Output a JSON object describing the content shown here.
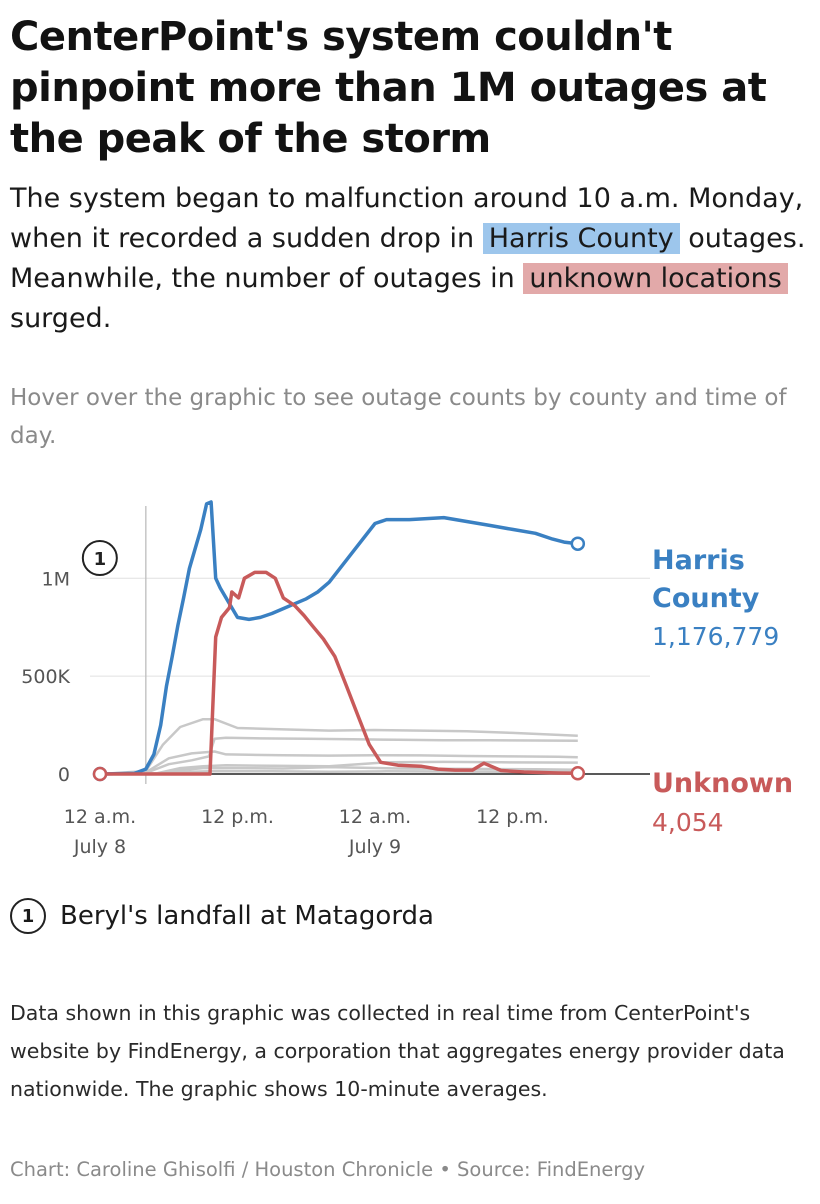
{
  "headline": "CenterPoint's system couldn't pinpoint more than 1M outages at the peak of the storm",
  "dek": {
    "part1": "The system began to malfunction around 10 a.m. Monday, when it recorded a sudden drop in",
    "harris_label": "Harris County",
    "part2": "outages. Meanwhile, the number of outages in",
    "unknown_label": "unknown locations",
    "part3": "surged."
  },
  "hover_note": "Hover over the graphic to see outage counts by county and time of day.",
  "annotation": {
    "badge": "1",
    "text": "Beryl's landfall at Matagorda"
  },
  "footer_note": "Data shown in this graphic was collected in real time from CenterPoint's website by FindEnergy, a corporation that aggregates energy provider data nationwide. The graphic shows 10-minute averages.",
  "credit": "Chart: Caroline Ghisolfi / Houston Chronicle • Source: FindEnergy",
  "colors": {
    "harris": "#3a80c2",
    "unknown": "#c85a5a",
    "other": "#c8c8c8",
    "grid": "#e0e0e0",
    "zero_line": "#222222"
  },
  "chart_data": {
    "type": "line",
    "x_unit": "hours since 12 a.m. July 8",
    "xlim": [
      0,
      48
    ],
    "ylim": [
      0,
      1400000
    ],
    "yticks": [
      {
        "value": 0,
        "label": "0"
      },
      {
        "value": 500000,
        "label": "500K"
      },
      {
        "value": 1000000,
        "label": "1M"
      }
    ],
    "xticks": [
      {
        "value": 0,
        "line1": "12 a.m.",
        "line2": "July 8"
      },
      {
        "value": 12,
        "line1": "12 p.m.",
        "line2": ""
      },
      {
        "value": 24,
        "line1": "12 a.m.",
        "line2": "July 9"
      },
      {
        "value": 36,
        "line1": "12 p.m.",
        "line2": ""
      }
    ],
    "event_marker": {
      "x": 4,
      "label": "1"
    },
    "series": [
      {
        "name": "Harris County",
        "role": "harris",
        "end_label_line1": "Harris",
        "end_label_line2": "County",
        "end_value": "1,176,779",
        "points": [
          [
            0,
            0
          ],
          [
            3,
            3000
          ],
          [
            4,
            25000
          ],
          [
            4.7,
            100000
          ],
          [
            5.3,
            250000
          ],
          [
            5.8,
            450000
          ],
          [
            6.3,
            600000
          ],
          [
            6.8,
            760000
          ],
          [
            7.3,
            900000
          ],
          [
            7.8,
            1050000
          ],
          [
            8.3,
            1150000
          ],
          [
            8.8,
            1250000
          ],
          [
            9.3,
            1380000
          ],
          [
            9.7,
            1390000
          ],
          [
            10.1,
            1000000
          ],
          [
            10.5,
            950000
          ],
          [
            11.2,
            880000
          ],
          [
            12,
            800000
          ],
          [
            13,
            790000
          ],
          [
            14,
            800000
          ],
          [
            15,
            820000
          ],
          [
            16,
            845000
          ],
          [
            17,
            870000
          ],
          [
            18,
            895000
          ],
          [
            19,
            930000
          ],
          [
            20,
            980000
          ],
          [
            22,
            1130000
          ],
          [
            24,
            1280000
          ],
          [
            25,
            1300000
          ],
          [
            27,
            1300000
          ],
          [
            30,
            1310000
          ],
          [
            32,
            1290000
          ],
          [
            34,
            1270000
          ],
          [
            36,
            1250000
          ],
          [
            38,
            1230000
          ],
          [
            39.5,
            1200000
          ],
          [
            40.5,
            1185000
          ],
          [
            41.7,
            1176779
          ]
        ]
      },
      {
        "name": "Unknown",
        "role": "unknown",
        "end_label_line1": "Unknown",
        "end_label_line2": "",
        "end_value": "4,054",
        "points": [
          [
            0,
            0
          ],
          [
            9.6,
            0
          ],
          [
            10.1,
            700000
          ],
          [
            10.6,
            800000
          ],
          [
            11.3,
            850000
          ],
          [
            11.5,
            930000
          ],
          [
            12.1,
            900000
          ],
          [
            12.6,
            1000000
          ],
          [
            13.5,
            1030000
          ],
          [
            14.5,
            1030000
          ],
          [
            15.3,
            1000000
          ],
          [
            16,
            900000
          ],
          [
            17,
            860000
          ],
          [
            17.8,
            810000
          ],
          [
            18.5,
            760000
          ],
          [
            19.5,
            690000
          ],
          [
            20.5,
            600000
          ],
          [
            21.5,
            450000
          ],
          [
            22.5,
            300000
          ],
          [
            23.5,
            150000
          ],
          [
            24.5,
            60000
          ],
          [
            26,
            45000
          ],
          [
            28,
            40000
          ],
          [
            29.5,
            25000
          ],
          [
            31,
            20000
          ],
          [
            32.5,
            20000
          ],
          [
            33.5,
            55000
          ],
          [
            35,
            18000
          ],
          [
            37,
            10000
          ],
          [
            40,
            5000
          ],
          [
            41.7,
            4054
          ]
        ]
      }
    ],
    "other_counties": [
      {
        "points": [
          [
            0,
            0
          ],
          [
            4,
            15000
          ],
          [
            5.5,
            150000
          ],
          [
            7,
            240000
          ],
          [
            9,
            280000
          ],
          [
            10,
            280000
          ],
          [
            12,
            235000
          ],
          [
            16,
            228000
          ],
          [
            20,
            222000
          ],
          [
            24,
            225000
          ],
          [
            28,
            222000
          ],
          [
            32,
            218000
          ],
          [
            36,
            210000
          ],
          [
            40,
            200000
          ],
          [
            41.7,
            195000
          ]
        ]
      },
      {
        "points": [
          [
            0,
            0
          ],
          [
            4,
            8000
          ],
          [
            6,
            80000
          ],
          [
            8,
            105000
          ],
          [
            10,
            115000
          ],
          [
            11,
            100000
          ],
          [
            13,
            98000
          ],
          [
            16,
            96000
          ],
          [
            20,
            94000
          ],
          [
            24,
            96000
          ],
          [
            28,
            95000
          ],
          [
            32,
            92000
          ],
          [
            36,
            90000
          ],
          [
            40,
            88000
          ],
          [
            41.7,
            86000
          ]
        ]
      },
      {
        "points": [
          [
            0,
            0
          ],
          [
            4,
            5000
          ],
          [
            6,
            50000
          ],
          [
            8,
            70000
          ],
          [
            9.5,
            90000
          ],
          [
            10,
            180000
          ],
          [
            11,
            185000
          ],
          [
            14,
            182000
          ],
          [
            18,
            180000
          ],
          [
            22,
            178000
          ],
          [
            26,
            175000
          ],
          [
            30,
            172000
          ],
          [
            34,
            172000
          ],
          [
            38,
            171000
          ],
          [
            41.7,
            170000
          ]
        ]
      },
      {
        "points": [
          [
            0,
            0
          ],
          [
            5,
            4000
          ],
          [
            7,
            30000
          ],
          [
            9,
            40000
          ],
          [
            11,
            45000
          ],
          [
            15,
            42000
          ],
          [
            20,
            40000
          ],
          [
            25,
            60000
          ],
          [
            30,
            62000
          ],
          [
            35,
            60000
          ],
          [
            41.7,
            58000
          ]
        ]
      },
      {
        "points": [
          [
            0,
            0
          ],
          [
            5,
            3000
          ],
          [
            7,
            20000
          ],
          [
            9,
            30000
          ],
          [
            12,
            30000
          ],
          [
            16,
            28000
          ],
          [
            20,
            35000
          ],
          [
            26,
            28000
          ],
          [
            32,
            26000
          ],
          [
            38,
            24000
          ],
          [
            41.7,
            22000
          ]
        ]
      },
      {
        "points": [
          [
            0,
            0
          ],
          [
            5,
            2000
          ],
          [
            7,
            10000
          ],
          [
            10,
            15000
          ],
          [
            15,
            14000
          ],
          [
            20,
            12000
          ],
          [
            25,
            14000
          ],
          [
            30,
            13000
          ],
          [
            35,
            12000
          ],
          [
            41.7,
            11000
          ]
        ]
      }
    ]
  }
}
